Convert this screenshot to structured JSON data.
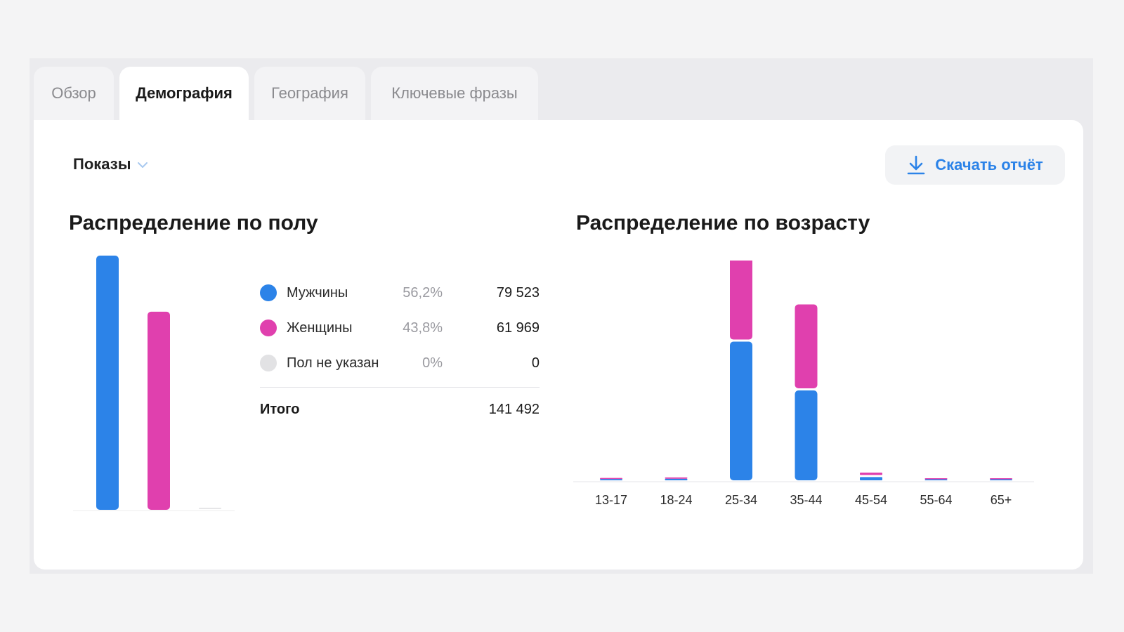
{
  "tabs": [
    {
      "label": "Обзор",
      "active": false
    },
    {
      "label": "Демография",
      "active": true
    },
    {
      "label": "География",
      "active": false
    },
    {
      "label": "Ключевые фразы",
      "active": false
    }
  ],
  "metric_select": {
    "label": "Показы",
    "icon": "chevron-down-icon"
  },
  "download_button": {
    "label": "Скачать отчёт",
    "icon": "download-icon"
  },
  "gender_section": {
    "title": "Распределение по полу",
    "rows": [
      {
        "label": "Мужчины",
        "percent": "56,2%",
        "value": "79 523",
        "color": "#2c83e8"
      },
      {
        "label": "Женщины",
        "percent": "43,8%",
        "value": "61 969",
        "color": "#e040ae"
      },
      {
        "label": "Пол не указан",
        "percent": "0%",
        "value": "0",
        "color": "#e2e2e4"
      }
    ],
    "total": {
      "label": "Итого",
      "value": "141 492"
    }
  },
  "age_section": {
    "title": "Распределение по возрасту"
  },
  "chart_data": [
    {
      "type": "bar",
      "categories": [
        "Мужчины",
        "Женщины",
        "Пол не указан"
      ],
      "values": [
        79523,
        61969,
        0
      ],
      "colors": [
        "#2c83e8",
        "#e040ae",
        "#e2e2e4"
      ],
      "ylim": [
        0,
        79523
      ],
      "grid": false
    },
    {
      "type": "bar",
      "stacked": true,
      "categories": [
        "13-17",
        "18-24",
        "25-34",
        "35-44",
        "45-54",
        "55-64",
        "65+"
      ],
      "series": [
        {
          "values": [
            400,
            500,
            43200,
            28000,
            1000,
            300,
            300
          ],
          "color": "#2c83e8"
        },
        {
          "values": [
            300,
            400,
            27900,
            26800,
            1400,
            200,
            200
          ],
          "color": "#e040ae"
        }
      ],
      "ylim": [
        0,
        71100
      ],
      "grid": false
    }
  ]
}
